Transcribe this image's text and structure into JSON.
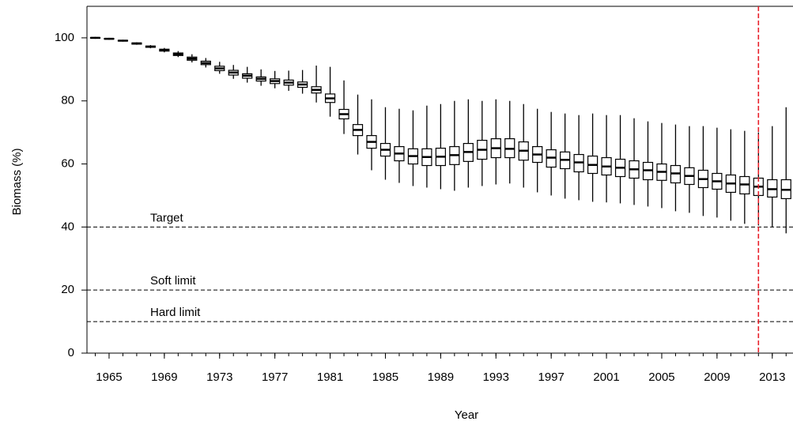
{
  "chart_data": {
    "type": "box",
    "x_label": "Year",
    "y_label": "Biomass (%)",
    "x": [
      1964,
      1965,
      1966,
      1967,
      1968,
      1969,
      1970,
      1971,
      1972,
      1973,
      1974,
      1975,
      1976,
      1977,
      1978,
      1979,
      1980,
      1981,
      1982,
      1983,
      1984,
      1985,
      1986,
      1987,
      1988,
      1989,
      1990,
      1991,
      1992,
      1993,
      1994,
      1995,
      1996,
      1997,
      1998,
      1999,
      2000,
      2001,
      2002,
      2003,
      2004,
      2005,
      2006,
      2007,
      2008,
      2009,
      2010,
      2011,
      2012,
      2013,
      2014
    ],
    "low": [
      99.7,
      99.4,
      98.8,
      97.8,
      96.7,
      95.4,
      93.9,
      92.2,
      90.6,
      88.6,
      87.0,
      85.8,
      84.8,
      84.0,
      83.2,
      82.3,
      79.5,
      75.0,
      69.5,
      63.0,
      58.0,
      55.0,
      54.0,
      53.0,
      52.5,
      52.0,
      51.5,
      52.5,
      53.0,
      53.5,
      53.8,
      52.5,
      51.0,
      50.0,
      49.0,
      48.5,
      48.0,
      47.8,
      47.5,
      47.0,
      46.5,
      46.0,
      45.0,
      44.5,
      43.5,
      43.0,
      42.0,
      41.0,
      40.5,
      40.0,
      38.0
    ],
    "q1": [
      99.9,
      99.6,
      99.0,
      98.0,
      97.0,
      95.8,
      94.4,
      92.9,
      91.5,
      89.6,
      88.2,
      87.2,
      86.3,
      85.5,
      85.0,
      84.3,
      82.5,
      79.5,
      74.3,
      69.0,
      65.0,
      62.5,
      61.0,
      60.0,
      59.5,
      59.5,
      59.8,
      60.8,
      61.5,
      62.0,
      62.0,
      61.2,
      60.5,
      59.0,
      58.5,
      57.5,
      57.0,
      56.5,
      56.0,
      55.5,
      55.0,
      54.8,
      54.0,
      53.5,
      52.5,
      52.0,
      51.0,
      50.5,
      50.0,
      49.5,
      49.0
    ],
    "median": [
      100.0,
      99.7,
      99.1,
      98.2,
      97.2,
      96.1,
      94.8,
      93.4,
      92.0,
      90.3,
      89.0,
      88.0,
      87.0,
      86.3,
      85.8,
      85.2,
      83.5,
      80.8,
      75.8,
      70.8,
      67.0,
      64.5,
      63.3,
      62.5,
      62.2,
      62.3,
      62.8,
      63.8,
      64.5,
      65.0,
      64.8,
      64.2,
      63.0,
      62.0,
      61.3,
      60.5,
      59.7,
      59.2,
      58.8,
      58.3,
      58.0,
      57.5,
      57.0,
      56.2,
      55.2,
      54.5,
      53.8,
      53.5,
      52.8,
      52.0,
      51.8
    ],
    "q3": [
      100.1,
      99.8,
      99.2,
      98.4,
      97.4,
      96.4,
      95.2,
      93.9,
      92.6,
      91.0,
      89.7,
      88.6,
      87.6,
      87.0,
      86.6,
      86.0,
      84.5,
      82.2,
      77.3,
      72.5,
      69.0,
      66.5,
      65.5,
      64.8,
      64.8,
      65.0,
      65.5,
      66.5,
      67.5,
      68.0,
      68.0,
      67.0,
      65.5,
      64.5,
      63.8,
      63.0,
      62.5,
      62.0,
      61.5,
      61.0,
      60.5,
      60.0,
      59.5,
      58.8,
      58.0,
      57.0,
      56.5,
      56.0,
      55.5,
      55.0,
      55.0
    ],
    "high": [
      100.3,
      100.0,
      99.4,
      98.6,
      97.7,
      96.8,
      95.8,
      94.8,
      93.6,
      92.4,
      91.4,
      90.8,
      90.0,
      89.5,
      89.6,
      89.8,
      91.2,
      90.8,
      86.5,
      82.0,
      80.5,
      78.0,
      77.5,
      77.0,
      78.5,
      79.0,
      80.0,
      80.5,
      80.0,
      80.5,
      80.0,
      79.0,
      77.5,
      76.5,
      76.0,
      75.5,
      76.0,
      75.5,
      75.5,
      74.5,
      73.5,
      73.0,
      72.5,
      72.0,
      72.0,
      71.5,
      71.0,
      70.5,
      70.0,
      72.0,
      78.0
    ],
    "color": "#000000",
    "xlim": [
      1963.4,
      2014.5
    ],
    "xticks": [
      1965,
      1969,
      1973,
      1977,
      1981,
      1985,
      1989,
      1993,
      1997,
      2001,
      2005,
      2009,
      2013
    ],
    "ylim": [
      0,
      110
    ],
    "yticks": [
      0,
      20,
      40,
      60,
      80,
      100
    ],
    "reference_lines": [
      {
        "label": "Target",
        "value": 40
      },
      {
        "label": "Soft limit",
        "value": 20
      },
      {
        "label": "Hard limit",
        "value": 10
      }
    ],
    "vertical_line": 2012,
    "vertical_line_color": "#e8202a"
  }
}
